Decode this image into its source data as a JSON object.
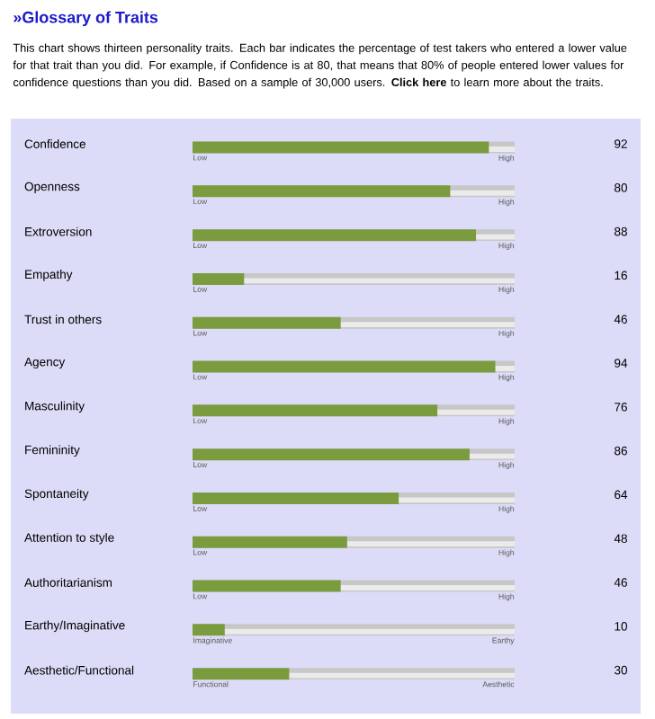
{
  "chart_data": {
    "type": "bar",
    "orientation": "horizontal",
    "title": "»Glossary of Traits",
    "subtitle": "This chart shows thirteen personality traits. Each bar indicates the percentage of test takers who entered a lower value for that trait than you did. For example, if Confidence is at 80, that means that 80% of people entered lower values for confidence questions than you did. Based on a sample of 30,000 users. **Click here** to learn more about the traits.",
    "categories": [
      "Confidence",
      "Openness",
      "Extroversion",
      "Empathy",
      "Trust in others",
      "Agency",
      "Masculinity",
      "Femininity",
      "Spontaneity",
      "Attention to style",
      "Authoritarianism",
      "Earthy/Imaginative",
      "Aesthetic/Functional"
    ],
    "values": [
      92,
      80,
      88,
      16,
      46,
      94,
      76,
      86,
      64,
      48,
      46,
      10,
      30
    ],
    "color": "#7b9b3f",
    "xlim": [
      0,
      100
    ],
    "tick_labels": "y",
    "data_labels": true,
    "annotations": [
      "Low",
      "High",
      "Low",
      "High",
      "Low",
      "High",
      "Low",
      "High",
      "Low",
      "High",
      "Low",
      "High",
      "Low",
      "High",
      "Low",
      "High",
      "Low",
      "High",
      "Low",
      "High",
      "Low",
      "High",
      "Imaginative",
      "Earthy",
      "Functional",
      "Aesthetic"
    ]
  }
}
